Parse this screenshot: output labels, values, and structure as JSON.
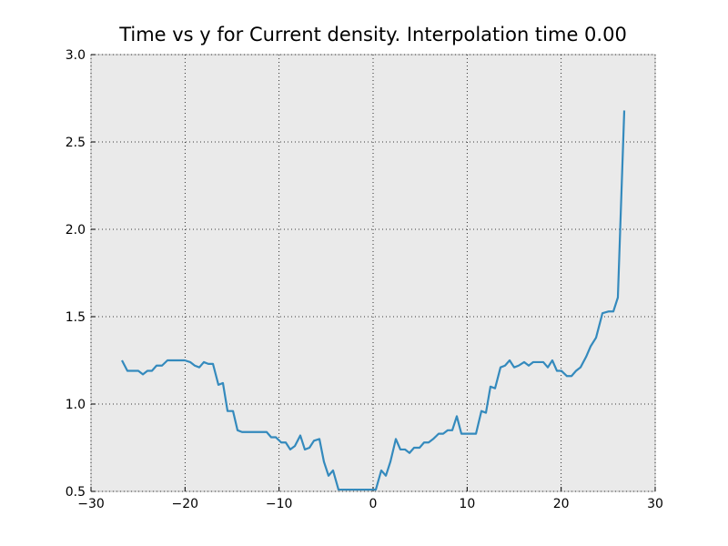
{
  "chart_data": {
    "type": "line",
    "title": "Time vs y for Current density. Interpolation time 0.00",
    "x": [
      -26.71,
      -26.13,
      -25.45,
      -24.97,
      -24.48,
      -24.0,
      -23.52,
      -23.03,
      -22.45,
      -21.87,
      -21.29,
      -20.61,
      -20.03,
      -19.45,
      -18.97,
      -18.48,
      -18.0,
      -17.52,
      -17.03,
      -16.45,
      -15.97,
      -15.48,
      -14.9,
      -14.42,
      -13.94,
      -13.35,
      -12.87,
      -12.39,
      -11.9,
      -11.32,
      -10.84,
      -10.35,
      -9.77,
      -9.29,
      -8.81,
      -8.32,
      -7.74,
      -7.26,
      -6.77,
      -6.29,
      -5.71,
      -5.23,
      -4.74,
      -4.26,
      -3.68,
      -3.19,
      -2.71,
      -2.23,
      -1.74,
      -1.16,
      -0.68,
      -0.19,
      0.29,
      0.87,
      1.36,
      1.84,
      2.42,
      2.9,
      3.39,
      3.87,
      4.36,
      4.94,
      5.42,
      5.9,
      6.39,
      6.97,
      7.45,
      7.94,
      8.42,
      8.9,
      9.39,
      9.97,
      10.45,
      10.94,
      11.52,
      12.0,
      12.48,
      12.97,
      13.55,
      14.03,
      14.52,
      15.0,
      15.48,
      16.06,
      16.55,
      17.03,
      17.52,
      18.1,
      18.58,
      19.06,
      19.55,
      20.03,
      20.61,
      21.1,
      21.58,
      22.06,
      22.65,
      23.13,
      23.71,
      24.39,
      25.06,
      25.55,
      26.03,
      26.71
    ],
    "series": [
      {
        "name": "Current density",
        "color": "#348abd",
        "values": [
          1.25,
          1.19,
          1.19,
          1.19,
          1.17,
          1.19,
          1.19,
          1.22,
          1.22,
          1.25,
          1.25,
          1.25,
          1.25,
          1.24,
          1.22,
          1.21,
          1.24,
          1.23,
          1.23,
          1.11,
          1.12,
          0.96,
          0.96,
          0.85,
          0.84,
          0.84,
          0.84,
          0.84,
          0.84,
          0.84,
          0.81,
          0.81,
          0.78,
          0.78,
          0.74,
          0.76,
          0.82,
          0.74,
          0.75,
          0.79,
          0.8,
          0.67,
          0.59,
          0.62,
          0.51,
          0.51,
          0.51,
          0.51,
          0.51,
          0.51,
          0.51,
          0.51,
          0.51,
          0.62,
          0.59,
          0.67,
          0.8,
          0.74,
          0.74,
          0.72,
          0.75,
          0.75,
          0.78,
          0.78,
          0.8,
          0.83,
          0.83,
          0.85,
          0.85,
          0.93,
          0.83,
          0.83,
          0.83,
          0.83,
          0.96,
          0.95,
          1.1,
          1.09,
          1.21,
          1.22,
          1.25,
          1.21,
          1.22,
          1.24,
          1.22,
          1.24,
          1.24,
          1.24,
          1.21,
          1.25,
          1.19,
          1.19,
          1.16,
          1.16,
          1.19,
          1.21,
          1.27,
          1.33,
          1.38,
          1.52,
          1.53,
          1.53,
          1.61,
          2.68
        ]
      }
    ],
    "xlim": [
      -30,
      30
    ],
    "xticks": [
      {
        "value": -30,
        "label": "−30"
      },
      {
        "value": -20,
        "label": "−20"
      },
      {
        "value": -10,
        "label": "−10"
      },
      0,
      10,
      20,
      30
    ],
    "ylim": [
      0.5,
      3.0
    ],
    "yticks": [
      0.5,
      {
        "value": 1.0,
        "label": "1.0"
      },
      1.5,
      {
        "value": 2.0,
        "label": "2.0"
      },
      2.5,
      {
        "value": 3.0,
        "label": "3.0"
      }
    ],
    "grid": true
  }
}
